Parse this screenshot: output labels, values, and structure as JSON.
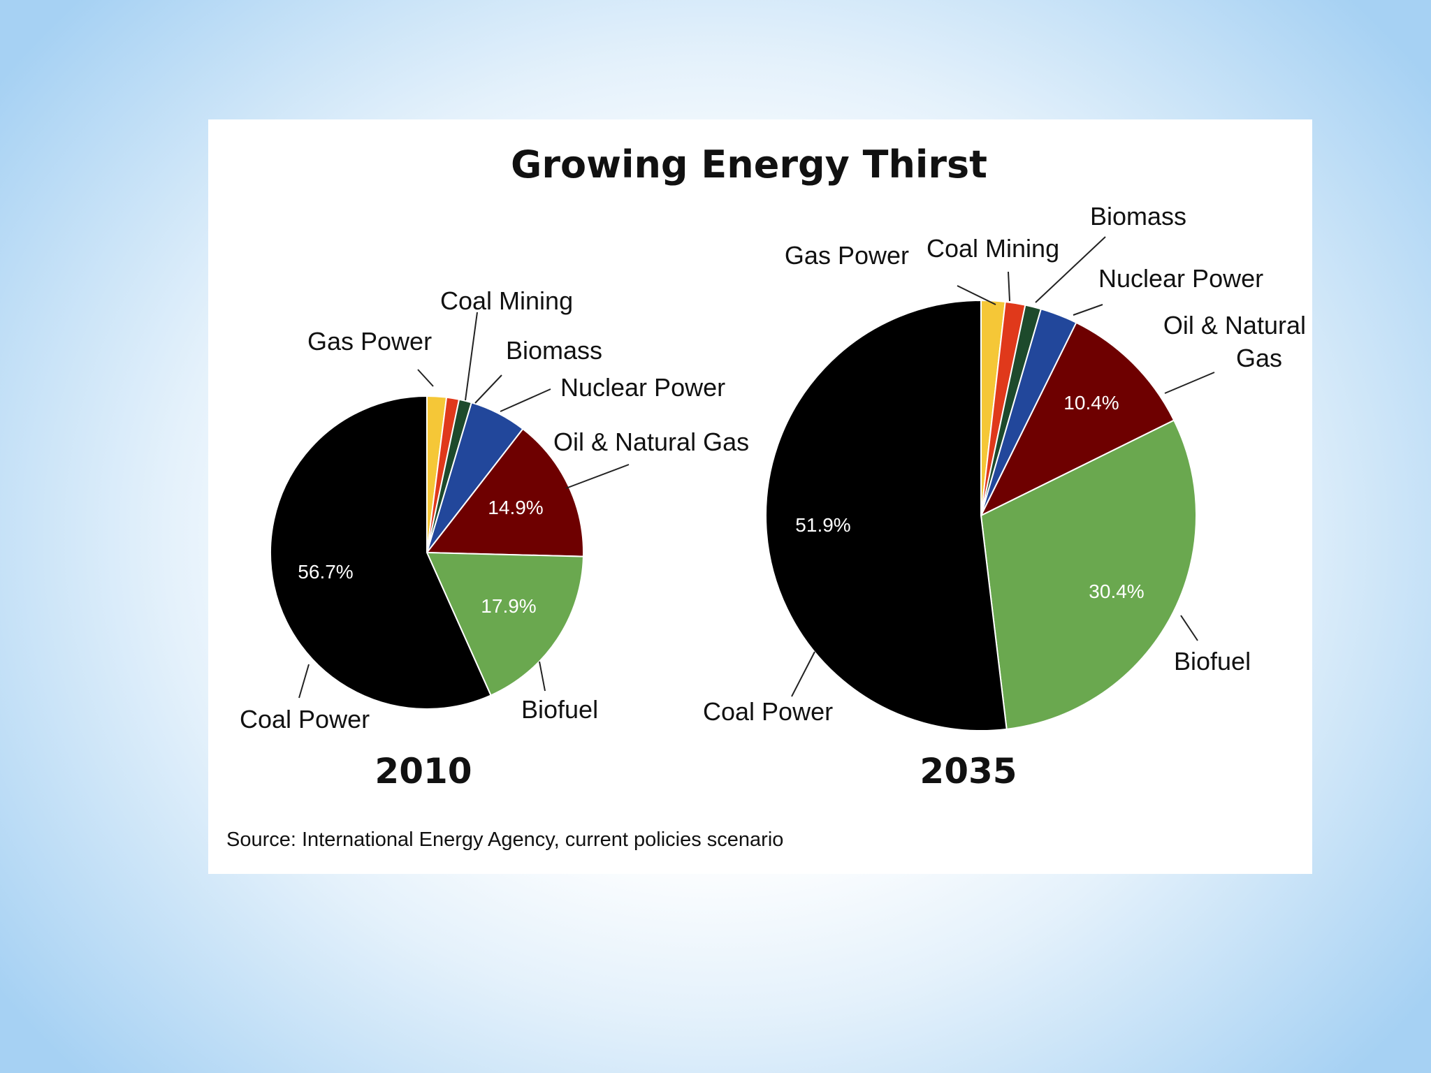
{
  "slide": {
    "background_edge_color": "#a6d1f3",
    "background_center_color": "#ffffff"
  },
  "chart_data": [
    {
      "type": "pie",
      "title": "Growing Energy Thirst",
      "year_label": "2010",
      "source": "Source: International Energy Agency, current policies scenario",
      "categories": [
        "Gas Power",
        "Coal Mining",
        "Biomass",
        "Nuclear Power",
        "Oil & Natural Gas",
        "Biofuel",
        "Coal Power"
      ],
      "values": [
        2.0,
        1.3,
        1.3,
        5.9,
        14.9,
        17.9,
        56.7
      ],
      "value_labels": [
        "",
        "",
        "",
        "",
        "14.9%",
        "17.9%",
        "56.7%"
      ],
      "colors": [
        "#f5c737",
        "#e0391b",
        "#1d4a2c",
        "#22479b",
        "#6e0000",
        "#6aa84f",
        "#000000"
      ],
      "start": "12 o'clock, clockwise"
    },
    {
      "type": "pie",
      "year_label": "2035",
      "categories": [
        "Gas Power",
        "Coal Mining",
        "Biomass",
        "Nuclear Power",
        "Oil & Natural Gas",
        "Biofuel",
        "Coal Power"
      ],
      "values": [
        1.8,
        1.5,
        1.2,
        2.8,
        10.4,
        30.4,
        51.9
      ],
      "value_labels": [
        "",
        "",
        "",
        "",
        "10.4%",
        "30.4%",
        "51.9%"
      ],
      "label_lines": [
        [
          "Gas Power"
        ],
        [
          "Coal Mining"
        ],
        [
          "Biomass"
        ],
        [
          "Nuclear Power"
        ],
        [
          "Oil & Natural",
          "Gas"
        ],
        [
          "Biofuel"
        ],
        [
          "Coal Power"
        ]
      ],
      "colors": [
        "#f5c737",
        "#e0391b",
        "#1d4a2c",
        "#22479b",
        "#6e0000",
        "#6aa84f",
        "#000000"
      ],
      "start": "12 o'clock, clockwise"
    }
  ]
}
